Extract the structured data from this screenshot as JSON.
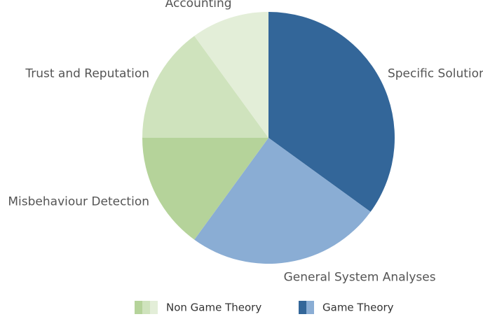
{
  "chart_data": {
    "type": "pie",
    "categories": [
      "Specific Solutions",
      "General System Analyses",
      "Misbehaviour Detection",
      "Trust and Reputation",
      "Accounting"
    ],
    "values": [
      35,
      25,
      15,
      15,
      10
    ],
    "colors": [
      "#336699",
      "#8aadd4",
      "#b5d39a",
      "#cfe3bd",
      "#e3eed8"
    ],
    "legend": [
      {
        "name": "Non Game Theory",
        "colors": [
          "#b5d39a",
          "#cfe3bd",
          "#e3eed8"
        ]
      },
      {
        "name": "Game Theory",
        "colors": [
          "#336699",
          "#8aadd4"
        ]
      }
    ]
  }
}
